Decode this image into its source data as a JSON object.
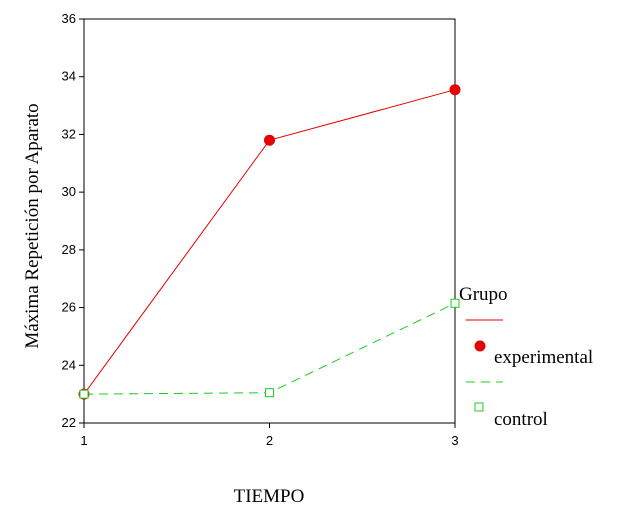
{
  "chart_data": {
    "type": "line",
    "title": "",
    "xlabel": "TIEMPO",
    "ylabel": "Máxima Repetición por Aparato",
    "x": [
      1,
      2,
      3
    ],
    "xticks": [
      "1",
      "2",
      "3"
    ],
    "xlim": [
      1,
      3
    ],
    "ylim": [
      22,
      36
    ],
    "yticks": [
      "22",
      "24",
      "26",
      "28",
      "30",
      "32",
      "34",
      "36"
    ],
    "grid": false,
    "legend": {
      "title": "Grupo",
      "placement": "right"
    },
    "series": [
      {
        "name": "experimental",
        "values": [
          23.0,
          31.8,
          33.55
        ],
        "color": "#e60000",
        "line_style": "solid",
        "marker": "filled-circle"
      },
      {
        "name": "control",
        "values": [
          23.0,
          23.05,
          26.15
        ],
        "color": "#1ecc1e",
        "line_style": "dashed",
        "marker": "open-square"
      }
    ]
  }
}
